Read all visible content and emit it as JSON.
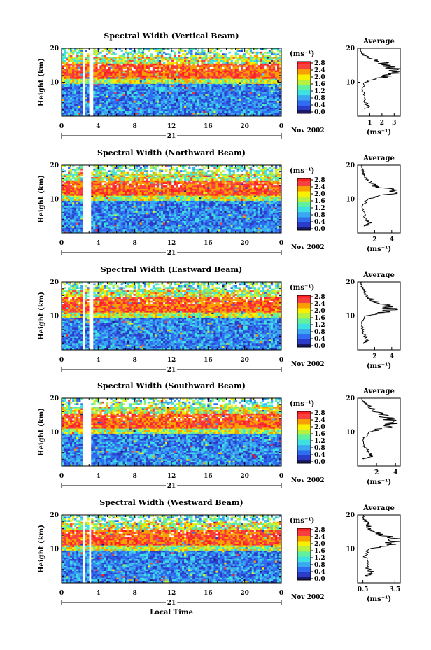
{
  "figure": {
    "x_axis_label": "Local Time",
    "colorbar_unit": "(ms⁻¹)",
    "colorbar_ticks": [
      "0.0",
      "0.4",
      "0.8",
      "1.2",
      "1.6",
      "2.0",
      "2.4",
      "2.8"
    ],
    "colors": {
      "colormap": [
        "#1a1a66",
        "#2a3cc8",
        "#2f6cf0",
        "#3aa8f0",
        "#3fe0e0",
        "#60f0a0",
        "#b8f040",
        "#f8f000",
        "#f8a000",
        "#f84040",
        "#ff2020"
      ]
    }
  },
  "chart_data": [
    {
      "type": "heatmap",
      "title": "Spectral Width (Vertical Beam)",
      "ylabel": "Height (km)",
      "ylim": [
        0,
        20
      ],
      "y_ticks": [
        "20",
        "10"
      ],
      "xlim": [
        0,
        24
      ],
      "x_ticks": [
        "0",
        "4",
        "8",
        "12",
        "16",
        "20",
        "0"
      ],
      "day_label": "21",
      "month_label": "Nov 2002",
      "colorbar": {
        "min": 0.0,
        "max": 2.8
      },
      "data_gaps_hours": [
        [
          2.3,
          2.6
        ],
        [
          3.1,
          3.4
        ]
      ],
      "average_profile": {
        "title": "Average",
        "xlabel": "(ms⁻¹)",
        "x_ticks": [
          "1",
          "2",
          "3"
        ],
        "xlim": [
          0,
          3.5
        ],
        "ylim": [
          0,
          20
        ],
        "y_ticks": [
          "20",
          "10"
        ],
        "profile": [
          [
            2,
            0.6
          ],
          [
            3,
            0.9
          ],
          [
            4,
            0.7
          ],
          [
            6,
            0.5
          ],
          [
            8,
            0.4
          ],
          [
            10,
            0.6
          ],
          [
            11,
            1.4
          ],
          [
            12,
            2.6
          ],
          [
            13,
            2.9
          ],
          [
            14,
            2.8
          ],
          [
            15,
            2.4
          ],
          [
            16,
            2.0
          ],
          [
            17,
            1.2
          ],
          [
            18,
            0.5
          ],
          [
            19,
            0.3
          ],
          [
            20,
            0.2
          ]
        ]
      }
    },
    {
      "type": "heatmap",
      "title": "Spectral Width (Northward Beam)",
      "ylabel": "Height (km)",
      "ylim": [
        0,
        20
      ],
      "y_ticks": [
        "20",
        "10"
      ],
      "xlim": [
        0,
        24
      ],
      "x_ticks": [
        "0",
        "4",
        "8",
        "12",
        "16",
        "20",
        "0"
      ],
      "day_label": "21",
      "month_label": "Nov 2002",
      "colorbar": {
        "min": 0.0,
        "max": 2.8
      },
      "data_gaps_hours": [
        [
          2.3,
          3.2
        ]
      ],
      "average_profile": {
        "title": "Average",
        "xlabel": "(ms⁻¹)",
        "x_ticks": [
          "2",
          "4"
        ],
        "xlim": [
          0,
          5
        ],
        "ylim": [
          0,
          20
        ],
        "y_ticks": [
          "20",
          "10"
        ],
        "profile": [
          [
            2,
            0.8
          ],
          [
            3,
            1.5
          ],
          [
            4,
            1.0
          ],
          [
            6,
            0.7
          ],
          [
            8,
            0.6
          ],
          [
            10,
            1.2
          ],
          [
            11,
            3.2
          ],
          [
            12,
            4.2
          ],
          [
            13,
            3.6
          ],
          [
            14,
            2.0
          ],
          [
            15,
            1.4
          ],
          [
            16,
            1.1
          ],
          [
            17,
            0.8
          ],
          [
            18,
            0.7
          ],
          [
            19,
            0.5
          ],
          [
            20,
            0.4
          ]
        ]
      }
    },
    {
      "type": "heatmap",
      "title": "Spectral Width (Eastward Beam)",
      "ylabel": "Height (km)",
      "ylim": [
        0,
        20
      ],
      "y_ticks": [
        "20",
        "10"
      ],
      "xlim": [
        0,
        24
      ],
      "x_ticks": [
        "0",
        "4",
        "8",
        "12",
        "16",
        "20",
        "0"
      ],
      "day_label": "21",
      "month_label": "Nov 2002",
      "colorbar": {
        "min": 0.0,
        "max": 2.8
      },
      "data_gaps_hours": [
        [
          2.3,
          2.6
        ],
        [
          3.0,
          3.4
        ]
      ],
      "average_profile": {
        "title": "Average",
        "xlabel": "(ms⁻¹)",
        "x_ticks": [
          "2",
          "4"
        ],
        "xlim": [
          0,
          5
        ],
        "ylim": [
          0,
          20
        ],
        "y_ticks": [
          "20",
          "10"
        ],
        "profile": [
          [
            2,
            0.7
          ],
          [
            3,
            1.2
          ],
          [
            4,
            0.9
          ],
          [
            6,
            0.6
          ],
          [
            8,
            0.5
          ],
          [
            10,
            1.0
          ],
          [
            11,
            3.0
          ],
          [
            12,
            4.0
          ],
          [
            13,
            3.4
          ],
          [
            14,
            2.2
          ],
          [
            15,
            1.5
          ],
          [
            16,
            1.0
          ],
          [
            17,
            0.8
          ],
          [
            18,
            0.6
          ],
          [
            19,
            0.5
          ],
          [
            20,
            0.4
          ]
        ]
      }
    },
    {
      "type": "heatmap",
      "title": "Spectral Width (Southward Beam)",
      "ylabel": "Height (km)",
      "ylim": [
        0,
        20
      ],
      "y_ticks": [
        "20",
        "10"
      ],
      "xlim": [
        0,
        24
      ],
      "x_ticks": [
        "0",
        "4",
        "8",
        "12",
        "16",
        "20",
        "0"
      ],
      "day_label": "21",
      "month_label": "Nov 2002",
      "colorbar": {
        "min": 0.0,
        "max": 2.8
      },
      "data_gaps_hours": [
        [
          2.4,
          3.2
        ]
      ],
      "average_profile": {
        "title": "Average",
        "xlabel": "(ms⁻¹)",
        "x_ticks": [
          "2",
          "4"
        ],
        "xlim": [
          0,
          4.5
        ],
        "ylim": [
          0,
          20
        ],
        "y_ticks": [
          "20",
          "10"
        ],
        "profile": [
          [
            2,
            0.6
          ],
          [
            3,
            1.5
          ],
          [
            4,
            1.2
          ],
          [
            5,
            0.9
          ],
          [
            6,
            0.7
          ],
          [
            8,
            0.6
          ],
          [
            10,
            1.2
          ],
          [
            11,
            2.5
          ],
          [
            12,
            3.4
          ],
          [
            13,
            3.8
          ],
          [
            14,
            3.2
          ],
          [
            15,
            2.6
          ],
          [
            16,
            2.0
          ],
          [
            17,
            1.5
          ],
          [
            18,
            1.0
          ],
          [
            19,
            0.6
          ],
          [
            20,
            0.4
          ]
        ]
      }
    },
    {
      "type": "heatmap",
      "title": "Spectral Width (Westward Beam)",
      "ylabel": "Height (km)",
      "ylim": [
        0,
        20
      ],
      "y_ticks": [
        "20",
        "10"
      ],
      "xlim": [
        0,
        24
      ],
      "x_ticks": [
        "0",
        "4",
        "8",
        "12",
        "16",
        "20",
        "0"
      ],
      "day_label": "21",
      "month_label": "Nov 2002",
      "colorbar": {
        "min": 0.0,
        "max": 2.8
      },
      "data_gaps_hours": [
        [
          2.3,
          2.6
        ],
        [
          3.0,
          3.3
        ]
      ],
      "average_profile": {
        "title": "Average",
        "xlabel": "(ms⁻¹)",
        "x_ticks": [
          "0.5",
          "3.5"
        ],
        "xlim": [
          0,
          4
        ],
        "ylim": [
          0,
          20
        ],
        "y_ticks": [
          "20",
          "10"
        ],
        "profile": [
          [
            2,
            0.8
          ],
          [
            3,
            1.4
          ],
          [
            4,
            1.0
          ],
          [
            6,
            0.8
          ],
          [
            8,
            0.7
          ],
          [
            10,
            1.1
          ],
          [
            11,
            2.6
          ],
          [
            12,
            3.5
          ],
          [
            13,
            3.3
          ],
          [
            14,
            2.4
          ],
          [
            15,
            1.6
          ],
          [
            16,
            1.2
          ],
          [
            17,
            1.0
          ],
          [
            18,
            0.8
          ],
          [
            19,
            0.6
          ],
          [
            20,
            0.5
          ]
        ]
      }
    }
  ]
}
